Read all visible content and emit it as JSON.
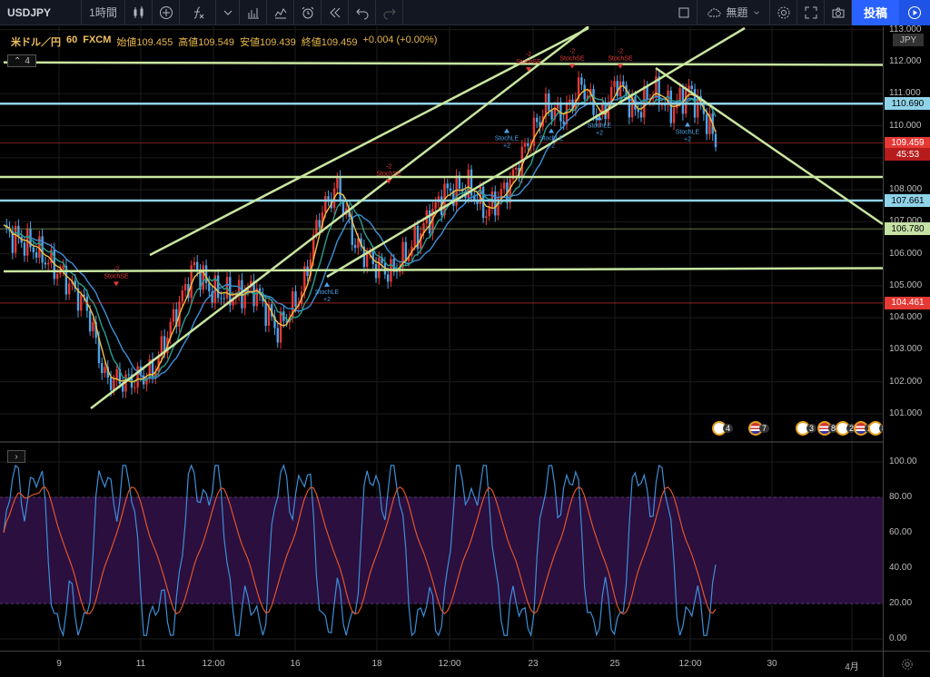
{
  "toolbar": {
    "symbol": "USDJPY",
    "interval": "1時間",
    "layout_name": "無題",
    "post_label": "投稿"
  },
  "legend": {
    "symbol": "米ドル／円",
    "interval": "60",
    "source": "FXCM",
    "open_label": "始値",
    "open": "109.455",
    "high_label": "高値",
    "high": "109.549",
    "low_label": "安値",
    "low": "109.439",
    "close_label": "終値",
    "close": "109.459",
    "change": "+0.004 (+0.00%)",
    "collapsed_count": "4"
  },
  "price_axis": {
    "currency": "JPY",
    "ticks": [
      "113.000",
      "112.000",
      "111.000",
      "110.000",
      "108.000",
      "107.000",
      "106.000",
      "105.000",
      "104.000",
      "103.000",
      "102.000",
      "101.000"
    ],
    "labels": [
      {
        "text": "110.690",
        "bg": "#8fd3e8",
        "fg": "#000"
      },
      {
        "text": "109.459",
        "bg": "#e53935",
        "fg": "#fff"
      },
      {
        "text": "45:53",
        "bg": "#b71c1c",
        "fg": "#fff"
      },
      {
        "text": "107.661",
        "bg": "#8fd3e8",
        "fg": "#000"
      },
      {
        "text": "106.780",
        "bg": "#c5e1a5",
        "fg": "#000"
      },
      {
        "text": "104.461",
        "bg": "#e53935",
        "fg": "#fff"
      }
    ],
    "osc_ticks": [
      "100.00",
      "80.00",
      "60.00",
      "40.00",
      "20.00",
      "0.00"
    ]
  },
  "time_axis": {
    "ticks": [
      "9",
      "11",
      "12:00",
      "16",
      "18",
      "12:00",
      "23",
      "25",
      "12:00",
      "30",
      "4月"
    ]
  },
  "signals": {
    "stoch_se": "StochSE",
    "stoch_le": "StochLE",
    "plus2": "+2",
    "minus2": "-2"
  },
  "events": [
    {
      "count": "4"
    },
    {
      "count": "7"
    },
    {
      "count": "3"
    },
    {
      "count": "8"
    },
    {
      "count": "2"
    },
    {
      "count": "2"
    },
    {
      "count": "8"
    }
  ],
  "colors": {
    "trend_line": "#c8e6a0",
    "support_blue": "#8fd3e8",
    "ma_fast": "#f0c040",
    "ma_mid": "#2a9d8f",
    "ma_slow": "#3d8fd8",
    "candle_up": "#e53935",
    "candle_down": "#4fa3e8",
    "stoch_k": "#3d8fd8",
    "stoch_d": "#e0552a",
    "osc_band": "#2a0f3f"
  }
}
